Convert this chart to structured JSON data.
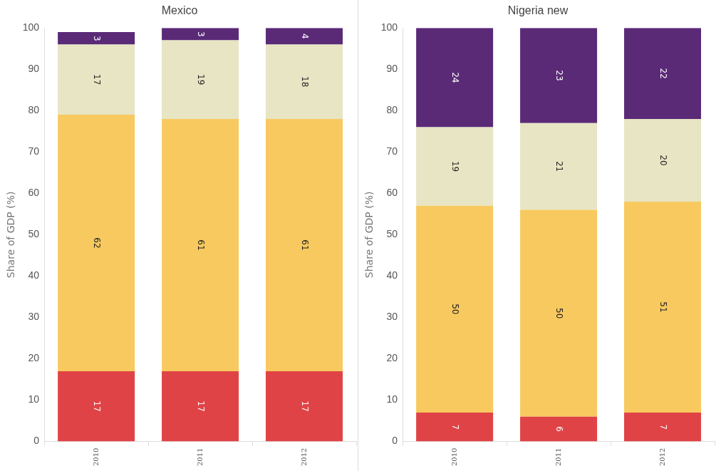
{
  "chart_data": [
    {
      "type": "bar",
      "title": "Mexico",
      "ylabel": "Share of GDP (%)",
      "categories": [
        "2010",
        "2011",
        "2012"
      ],
      "stacked": true,
      "data_labels": true,
      "grid": false,
      "legend": false,
      "ylim": [
        0,
        100
      ],
      "yticks": [
        0,
        10,
        20,
        30,
        40,
        50,
        60,
        70,
        80,
        90,
        100
      ],
      "series": [
        {
          "color": "#e04346",
          "values": [
            17,
            17,
            17
          ]
        },
        {
          "color": "#f8c95f",
          "values": [
            62,
            61,
            61
          ]
        },
        {
          "color": "#e7e5c3",
          "values": [
            17,
            19,
            18
          ]
        },
        {
          "color": "#5a2a77",
          "values": [
            3,
            3,
            4
          ]
        }
      ]
    },
    {
      "type": "bar",
      "title": "Nigeria new",
      "ylabel": "Share of GDP (%)",
      "categories": [
        "2010",
        "2011",
        "2012"
      ],
      "stacked": true,
      "data_labels": true,
      "grid": false,
      "legend": false,
      "ylim": [
        0,
        100
      ],
      "yticks": [
        0,
        10,
        20,
        30,
        40,
        50,
        60,
        70,
        80,
        90,
        100
      ],
      "series": [
        {
          "color": "#e04346",
          "values": [
            7,
            6,
            7
          ]
        },
        {
          "color": "#f8c95f",
          "values": [
            50,
            50,
            51
          ]
        },
        {
          "color": "#e7e5c3",
          "values": [
            19,
            21,
            20
          ]
        },
        {
          "color": "#5a2a77",
          "values": [
            24,
            23,
            22
          ]
        }
      ]
    }
  ]
}
